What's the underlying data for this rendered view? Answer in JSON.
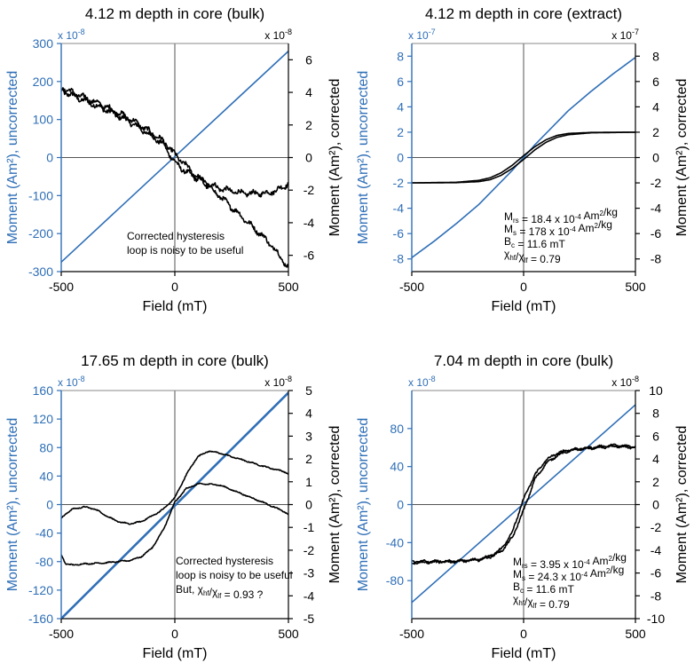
{
  "colors": {
    "blue": "#2f6fb7",
    "black": "#000000"
  },
  "chart_data": [
    {
      "type": "line",
      "title": "4.12 m depth in core (bulk)",
      "xlabel": "Field (mT)",
      "ylabel_left": "Moment (Am²), uncorrected",
      "ylabel_right": "Moment (Am²), corrected",
      "mult_left": "x 10-8",
      "mult_right": "x 10-8",
      "mult_left_base": "x 10",
      "mult_left_exp": "-8",
      "mult_right_base": "x 10",
      "mult_right_exp": "-8",
      "xlim": [
        -500,
        500
      ],
      "xticks": [
        -500,
        0,
        500
      ],
      "ylim_left": [
        -300,
        300
      ],
      "yticks_left": [
        -300,
        -200,
        -100,
        0,
        100,
        200,
        300
      ],
      "ylim_right": [
        -7,
        7
      ],
      "yticks_right": [
        -6,
        -4,
        -2,
        0,
        2,
        4,
        6
      ],
      "series": [
        {
          "name": "uncorrected",
          "axis": "left",
          "color": "#2f6fb7",
          "x": [
            -500,
            500
          ],
          "y": [
            -275,
            280
          ]
        },
        {
          "name": "corrected branch 1",
          "axis": "right",
          "color": "#000000",
          "noise": 0.2,
          "x": [
            -500,
            -400,
            -300,
            -200,
            -100,
            -50,
            0,
            50,
            100,
            200,
            300,
            400,
            450,
            500
          ],
          "y": [
            4.1,
            3.5,
            2.9,
            2.2,
            1.3,
            0.8,
            -0.3,
            -0.9,
            -1.3,
            -1.9,
            -2.2,
            -2.2,
            -2.0,
            -1.6
          ]
        },
        {
          "name": "corrected branch 2",
          "axis": "right",
          "color": "#000000",
          "noise": 0.2,
          "x": [
            -500,
            -400,
            -300,
            -200,
            -100,
            -50,
            0,
            50,
            100,
            200,
            300,
            400,
            450,
            500
          ],
          "y": [
            4.3,
            3.7,
            3.1,
            2.4,
            1.5,
            1.0,
            0.2,
            -0.5,
            -1.2,
            -2.4,
            -3.7,
            -5.0,
            -5.8,
            -6.8
          ]
        }
      ],
      "annotations": [
        {
          "id": "a1",
          "text": "Corrected hysteresis"
        },
        {
          "id": "a2",
          "text": "loop is noisy to be useful"
        }
      ]
    },
    {
      "type": "line",
      "title": "4.12 m depth in core (extract)",
      "xlabel": "Field (mT)",
      "ylabel_left": "Moment (Am²), uncorrected",
      "ylabel_right": "Moment (Am²), corrected",
      "mult_left": "x 10-7",
      "mult_right": "x 10-7",
      "mult_left_base": "x 10",
      "mult_left_exp": "-7",
      "mult_right_base": "x 10",
      "mult_right_exp": "-7",
      "xlim": [
        -500,
        500
      ],
      "xticks": [
        -500,
        0,
        500
      ],
      "ylim_left": [
        -9,
        9
      ],
      "yticks_left": [
        -8,
        -6,
        -4,
        -2,
        0,
        2,
        4,
        6,
        8
      ],
      "ylim_right": [
        -9,
        9
      ],
      "yticks_right": [
        -8,
        -6,
        -4,
        -2,
        0,
        2,
        4,
        6,
        8
      ],
      "series": [
        {
          "name": "uncorrected",
          "axis": "left",
          "color": "#2f6fb7",
          "noise": 0,
          "x": [
            -500,
            -400,
            -300,
            -200,
            -100,
            -50,
            0,
            50,
            100,
            200,
            300,
            400,
            500
          ],
          "y": [
            -7.9,
            -6.6,
            -5.2,
            -3.7,
            -1.9,
            -1.0,
            0.0,
            1.0,
            1.9,
            3.7,
            5.2,
            6.6,
            7.9
          ]
        },
        {
          "name": "corrected branch 1",
          "axis": "right",
          "color": "#000000",
          "noise": 0,
          "x": [
            -500,
            -300,
            -200,
            -150,
            -100,
            -50,
            0,
            50,
            100,
            150,
            200,
            300,
            500
          ],
          "y": [
            -2.0,
            -1.95,
            -1.8,
            -1.6,
            -1.2,
            -0.6,
            0.15,
            0.85,
            1.4,
            1.75,
            1.9,
            1.98,
            2.0
          ]
        },
        {
          "name": "corrected branch 2",
          "axis": "right",
          "color": "#000000",
          "noise": 0,
          "x": [
            -500,
            -300,
            -200,
            -150,
            -100,
            -50,
            0,
            50,
            100,
            150,
            200,
            300,
            500
          ],
          "y": [
            -2.0,
            -1.98,
            -1.9,
            -1.75,
            -1.4,
            -0.85,
            -0.15,
            0.6,
            1.2,
            1.6,
            1.8,
            1.95,
            2.0
          ]
        }
      ],
      "annotations": [
        {
          "id": "b1",
          "text": "Mrs = 18.4 x 10-4 Am2/kg",
          "parts": [
            "M",
            "rs",
            " = 18.4 x 10",
            "-4",
            " Am",
            "2",
            "/kg"
          ]
        },
        {
          "id": "b2",
          "text": "Ms = 178 x 10-4 Am2/kg",
          "parts": [
            "M",
            "s",
            " = 178 x 10",
            "-4",
            " Am",
            "2",
            "/kg"
          ]
        },
        {
          "id": "b3",
          "text": "Bc = 11.6 mT",
          "parts": [
            "B",
            "c",
            " = 11.6 mT"
          ]
        },
        {
          "id": "b4",
          "text": "χhf/χlf = 0.79",
          "parts": [
            "χ",
            "hf",
            "/χ",
            "lf",
            " = 0.79"
          ]
        }
      ]
    },
    {
      "type": "line",
      "title": "17.65 m depth in core (bulk)",
      "xlabel": "Field (mT)",
      "ylabel_left": "Moment (Am²), uncorrected",
      "ylabel_right": "Moment (Am²), corrected",
      "mult_left": "x 10-8",
      "mult_right": "x 10-8",
      "mult_left_base": "x 10",
      "mult_left_exp": "-8",
      "mult_right_base": "x 10",
      "mult_right_exp": "-8",
      "xlim": [
        -500,
        500
      ],
      "xticks": [
        -500,
        0,
        500
      ],
      "ylim_left": [
        -160,
        160
      ],
      "yticks_left": [
        -160,
        -120,
        -80,
        -40,
        0,
        40,
        80,
        120,
        160
      ],
      "ylim_right": [
        -5,
        5
      ],
      "yticks_right": [
        -5,
        -4,
        -3,
        -2,
        -1,
        0,
        1,
        2,
        3,
        4,
        5
      ],
      "series": [
        {
          "name": "uncorrected",
          "axis": "left",
          "color": "#2f6fb7",
          "noise": 0,
          "width": 2.6,
          "x": [
            -500,
            500
          ],
          "y": [
            -160,
            157
          ]
        },
        {
          "name": "corrected upper",
          "axis": "right",
          "color": "#000000",
          "noise": 0.03,
          "x": [
            -500,
            -480,
            -450,
            -400,
            -350,
            -300,
            -250,
            -200,
            -150,
            -100,
            -50,
            0,
            50,
            100,
            150,
            200,
            300,
            400,
            480,
            500
          ],
          "y": [
            -0.6,
            -0.4,
            -0.2,
            -0.1,
            -0.2,
            -0.5,
            -0.75,
            -0.85,
            -0.75,
            -0.5,
            -0.2,
            0.3,
            1.3,
            2.1,
            2.35,
            2.25,
            1.95,
            1.65,
            1.45,
            1.35
          ]
        },
        {
          "name": "corrected lower",
          "axis": "right",
          "color": "#000000",
          "noise": 0.03,
          "x": [
            -500,
            -480,
            -450,
            -400,
            -300,
            -200,
            -150,
            -100,
            -50,
            0,
            50,
            100,
            150,
            200,
            300,
            400,
            480,
            500
          ],
          "y": [
            -2.2,
            -2.6,
            -2.65,
            -2.6,
            -2.55,
            -2.45,
            -2.3,
            -1.9,
            -1.1,
            0.1,
            0.7,
            0.9,
            0.9,
            0.85,
            0.45,
            0.05,
            -0.3,
            -0.45
          ]
        }
      ],
      "annotations": [
        {
          "id": "c1",
          "text": "Corrected hysteresis"
        },
        {
          "id": "c2",
          "text": "loop is noisy to be useful"
        },
        {
          "id": "c3",
          "text": "But, χhf/χlf = 0.93 ?",
          "parts": [
            "But, χ",
            "hf",
            "/χ",
            "lf",
            " = 0.93 ?"
          ]
        }
      ]
    },
    {
      "type": "line",
      "title": "7.04 m depth in core (bulk)",
      "xlabel": "Field (mT)",
      "ylabel_left": "Moment (Am²), uncorrected",
      "ylabel_right": "Moment (Am²), corrected",
      "mult_left": "x 10-8",
      "mult_right": "x 10-8",
      "mult_left_base": "x 10",
      "mult_left_exp": "-8",
      "mult_right_base": "x 10",
      "mult_right_exp": "-8",
      "xlim": [
        -500,
        500
      ],
      "xticks": [
        -500,
        0,
        500
      ],
      "ylim_left": [
        -120,
        120
      ],
      "yticks_left": [
        -80,
        -40,
        0,
        40,
        80
      ],
      "ylim_right": [
        -10,
        10
      ],
      "yticks_right": [
        -10,
        -8,
        -6,
        -4,
        -2,
        0,
        2,
        4,
        6,
        8,
        10
      ],
      "series": [
        {
          "name": "uncorrected",
          "axis": "left",
          "color": "#2f6fb7",
          "noise": 0,
          "x": [
            -500,
            500
          ],
          "y": [
            -103,
            105
          ]
        },
        {
          "name": "corrected branch 1",
          "axis": "right",
          "color": "#000000",
          "noise": 0.12,
          "x": [
            -500,
            -300,
            -200,
            -150,
            -100,
            -50,
            0,
            50,
            100,
            150,
            200,
            300,
            400,
            500
          ],
          "y": [
            -5.0,
            -4.95,
            -4.8,
            -4.5,
            -3.9,
            -2.4,
            0.5,
            2.6,
            3.9,
            4.5,
            4.8,
            5.0,
            5.2,
            5.1
          ]
        },
        {
          "name": "corrected branch 2",
          "axis": "right",
          "color": "#000000",
          "noise": 0.12,
          "x": [
            -500,
            -300,
            -200,
            -150,
            -100,
            -50,
            0,
            50,
            100,
            150,
            200,
            300,
            400,
            500
          ],
          "y": [
            -5.1,
            -5.0,
            -4.85,
            -4.6,
            -4.1,
            -2.9,
            -0.5,
            2.2,
            3.6,
            4.3,
            4.7,
            4.95,
            5.1,
            5.0
          ]
        }
      ],
      "annotations": [
        {
          "id": "d1",
          "text": "Mrs = 3.95 x 10-4 Am2/kg",
          "parts": [
            "M",
            "rs",
            " = 3.95 x 10",
            "-4",
            " Am",
            "2",
            "/kg"
          ]
        },
        {
          "id": "d2",
          "text": "Ms = 24.3 x 10-4 Am2/kg",
          "parts": [
            "M",
            "s",
            " = 24.3 x 10",
            "-4",
            " Am",
            "2",
            "/kg"
          ]
        },
        {
          "id": "d3",
          "text": "Bc = 11.6 mT",
          "parts": [
            "B",
            "c",
            " = 11.6 mT"
          ]
        },
        {
          "id": "d4",
          "text": "χhf/χlf = 0.79",
          "parts": [
            "χ",
            "hf",
            "/χ",
            "lf",
            " = 0.79"
          ]
        }
      ]
    }
  ]
}
